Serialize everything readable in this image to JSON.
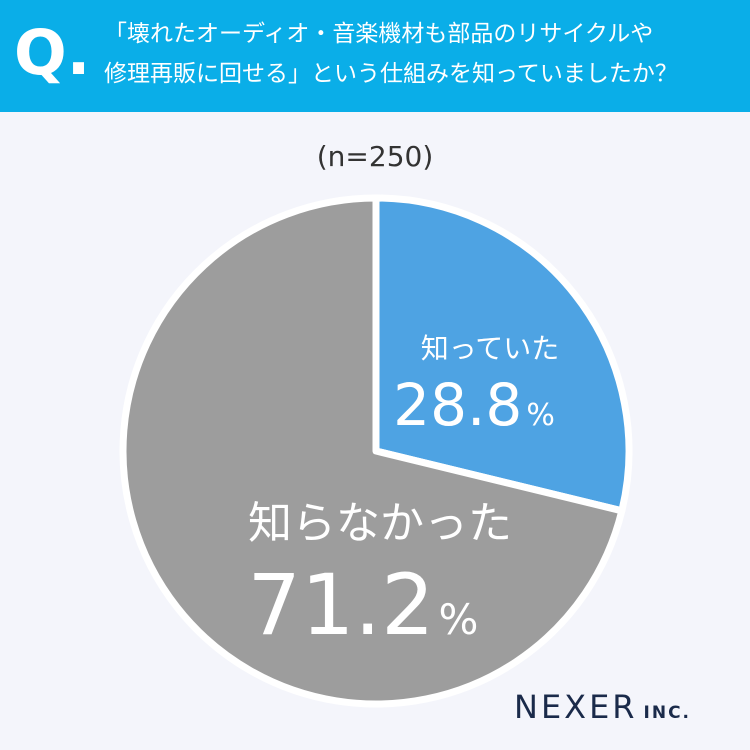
{
  "header": {
    "q_mark": "Q.",
    "question_lines": [
      "「壊れたオーディオ・音楽機材も部品のリサイクルや",
      "修理再販に回せる」という仕組みを知っていましたか？"
    ]
  },
  "sample_size": "(n=250)",
  "brand": {
    "name": "NEXER",
    "suffix": "INC."
  },
  "colors": {
    "header_bg": "#0aaee8",
    "slice_knew": "#4ea3e3",
    "slice_not_knew": "#9d9d9d",
    "background": "#f4f5fb"
  },
  "chart_data": {
    "type": "pie",
    "title": "「壊れたオーディオ・音楽機材も部品のリサイクルや修理再販に回せる」という仕組みを知っていましたか？",
    "start": "12 o'clock, clockwise",
    "slices": [
      {
        "label": "知っていた",
        "value": 28.8,
        "value_label": "28.8",
        "unit": "%"
      },
      {
        "label": "知らなかった",
        "value": 71.2,
        "value_label": "71.2",
        "unit": "%"
      }
    ]
  }
}
